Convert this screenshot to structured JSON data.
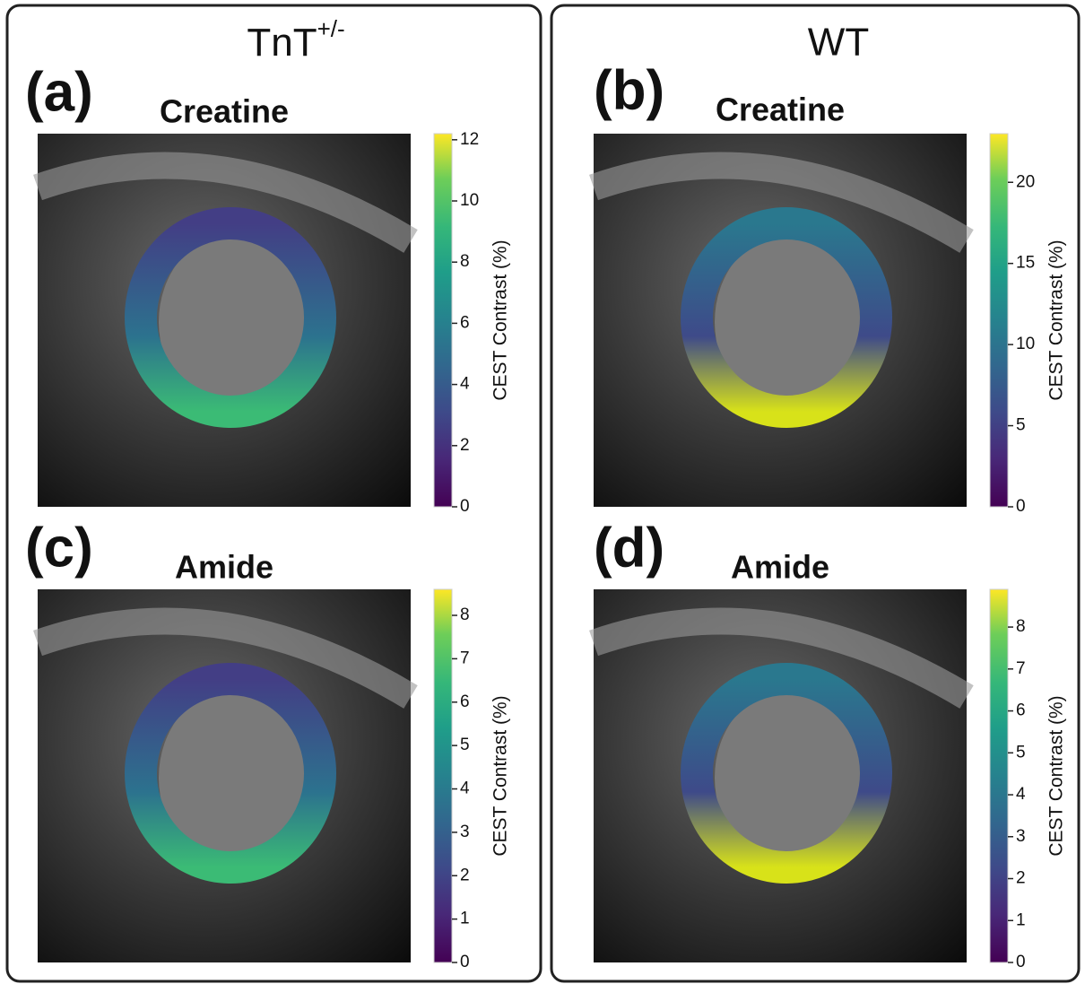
{
  "headers": [
    {
      "text": "TnT",
      "superscript": "+/-"
    },
    {
      "text": "WT"
    }
  ],
  "chart_data": [
    {
      "type": "heatmap",
      "label": "(a)",
      "title": "Creatine",
      "colorbar_label": "CEST Contrast (%)",
      "colormap": "viridis",
      "clim": [
        0,
        12.2
      ],
      "cticks": [
        0,
        2,
        4,
        6,
        8,
        10,
        12
      ]
    },
    {
      "type": "heatmap",
      "label": "(b)",
      "title": "Creatine",
      "colorbar_label": "CEST Contrast (%)",
      "colormap": "viridis",
      "clim": [
        0,
        23
      ],
      "cticks": [
        0,
        5,
        10,
        15,
        20
      ]
    },
    {
      "type": "heatmap",
      "label": "(c)",
      "title": "Amide",
      "colorbar_label": "CEST Contrast (%)",
      "colormap": "viridis",
      "clim": [
        0,
        8.6
      ],
      "cticks": [
        0,
        1,
        2,
        3,
        4,
        5,
        6,
        7,
        8
      ]
    },
    {
      "type": "heatmap",
      "label": "(d)",
      "title": "Amide",
      "colorbar_label": "CEST Contrast (%)",
      "colormap": "viridis",
      "clim": [
        0,
        8.9
      ],
      "cticks": [
        0,
        1,
        2,
        3,
        4,
        5,
        6,
        7,
        8
      ]
    }
  ]
}
